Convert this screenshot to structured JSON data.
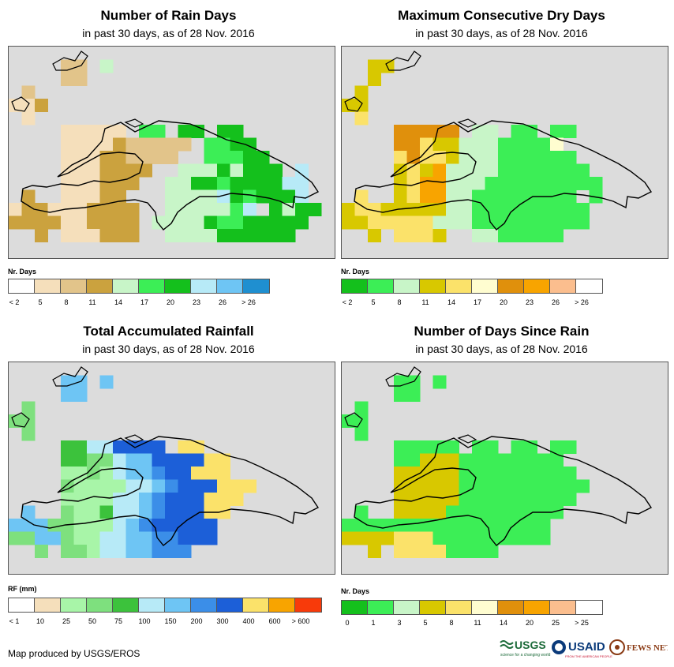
{
  "panels": [
    {
      "id": "rain-days",
      "title": "Number of Rain Days",
      "subtitle": "in past 30 days, as of 28 Nov. 2016",
      "legend": {
        "title": "Nr. Days",
        "colors": [
          "#ffffff",
          "#f5dfbb",
          "#e2c48a",
          "#cba23e",
          "#c8f5c8",
          "#3cee56",
          "#14c01c",
          "#b7eaf7",
          "#6ec5f4",
          "#1f8fd0"
        ],
        "labels": [
          "< 2",
          "5",
          "8",
          "11",
          "14",
          "17",
          "20",
          "23",
          "26",
          "> 26"
        ]
      },
      "grid": [
        "............................",
        "....22.4....................",
        "....22......................",
        ".2...........................",
        "113..........................",
        ".1..........................",
        "....11111.55.66.66...........",
        "....1111322222.5566..........",
        "....111332222..55566.........",
        "....1113333..44464666.7......",
        "....111333..44665666677......",
        ".3..11133...44447656667......",
        "1331113333..4444457.6466.....",
        "3333113333.444465566666......",
        "..3.111333..4444666666.......",
        "............................"
      ]
    },
    {
      "id": "dry-days",
      "title": "Maximum Consecutive Dry Days",
      "subtitle": "in past 30 days, as of 28 Nov. 2016",
      "legend": {
        "title": "Nr. Days",
        "colors": [
          "#14c01c",
          "#3cee56",
          "#c8f5c8",
          "#d8c800",
          "#fbe26a",
          "#fffdd0",
          "#e0900c",
          "#f8a400",
          "#fbbe8e",
          "#ffffff"
        ],
        "labels": [
          "< 2",
          "5",
          "8",
          "11",
          "14",
          "17",
          "20",
          "23",
          "26",
          "> 26"
        ]
      },
      "grid": [
        "..........................",
        "..33.....................",
        "..3......................",
        ".3.......................",
        "33.......................",
        ".4.......................",
        "....66666.22.11.11.......",
        "....6643322211115.........",
        "....46443222111111........",
        "....343722221111111.......",
        "....3477222111111111......",
        ".4..34772211111111.1......",
        "3443333322111111111.......",
        "3344444222111111111.......",
        "..3.4443..2211111..........",
        ".........................."
      ]
    },
    {
      "id": "rainfall",
      "title": "Total Accumulated Rainfall",
      "subtitle": "in past 30 days, as of 28 Nov. 2016",
      "legend": {
        "title": "RF (mm)",
        "colors": [
          "#ffffff",
          "#f5dfbb",
          "#a8f5a8",
          "#7ee07e",
          "#3cc23c",
          "#b7eaf7",
          "#6ec5f4",
          "#3b8ee8",
          "#1c5fd8",
          "#fbe26a",
          "#f8a400",
          "#f83a0a"
        ],
        "labels": [
          "< 1",
          "10",
          "25",
          "50",
          "75",
          "100",
          "150",
          "200",
          "300",
          "400",
          "600",
          "> 600"
        ]
      },
      "grid": [
        "..........................",
        "....66.6..................",
        "....66....................",
        ".3........................",
        "33........................",
        ".3........................",
        "....44558888.99...........",
        "....4433566888899.........",
        "....2232566788999.........",
        "....322225567888999.......",
        "....22225567888999.........",
        ".6..3224556788899.........",
        "6663322256788888..........",
        "3366322556677888..........",
        "..3.3325566777............",
        ".........................."
      ]
    },
    {
      "id": "days-since-rain",
      "title": "Number of Days Since Rain",
      "subtitle": "in past 30 days, as of 28 Nov. 2016",
      "legend": {
        "title": "Nr. Days",
        "colors": [
          "#14c01c",
          "#3cee56",
          "#c8f5c8",
          "#d8c800",
          "#fbe26a",
          "#fffdd0",
          "#e0900c",
          "#f8a400",
          "#fbbe8e",
          "#ffffff"
        ],
        "labels": [
          "0",
          "1",
          "3",
          "5",
          "8",
          "11",
          "14",
          "20",
          "25",
          "> 25"
        ]
      },
      "grid": [
        "..........................",
        "....11.1..................",
        "....11....................",
        ".1........................",
        "11........................",
        ".1........................",
        "....11111.11.11.11........",
        "....1133311111111.........",
        "....33333111111111........",
        "....333331111111111.......",
        "....33333111111111.........",
        ".1..3333111111111..........",
        "1111111111111111..........",
        "3333444111111111..........",
        "..3.44441111..............",
        ".........................."
      ]
    }
  ],
  "footer": "Map produced by USGS/EROS",
  "logos": {
    "usgs": "USGS",
    "usgs_tagline": "science for a changing world",
    "usaid": "USAID",
    "usaid_tagline": "FROM THE AMERICAN PEOPLE",
    "fewsnet": "FEWS NET"
  }
}
